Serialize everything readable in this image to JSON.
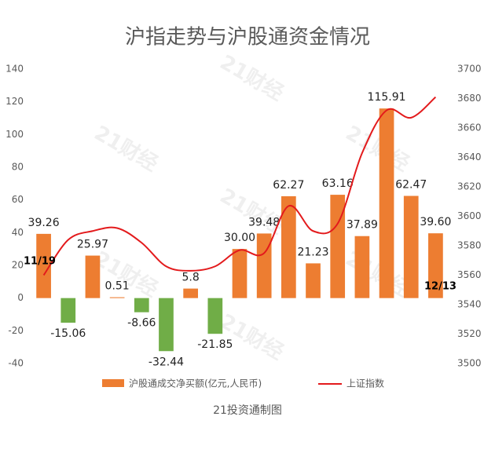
{
  "chart_data": {
    "type": "bar_line",
    "title": "沪指走势与沪股通资金情况",
    "footer": "21投资通制图",
    "watermark": "21财经",
    "annotations": [
      "11/19",
      "12/13"
    ],
    "series": [
      {
        "name": "沪股通成交净买额(亿元,人民币)",
        "type": "bar",
        "color": "#ed7d31",
        "negative_color": "#70ad47",
        "values": [
          39.26,
          -15.06,
          25.97,
          0.51,
          -8.66,
          -32.44,
          5.8,
          -21.85,
          30.0,
          39.48,
          62.27,
          21.23,
          63.16,
          37.89,
          115.91,
          62.47,
          39.6
        ],
        "value_labels": [
          "39.26",
          "-15.06",
          "25.97",
          "0.51",
          "-8.66",
          "-32.44",
          "5.8",
          "-21.85",
          "30.00",
          "39.48",
          "62.27",
          "21.23",
          "63.16",
          "37.89",
          "115.91",
          "62.47",
          "39.60"
        ]
      },
      {
        "name": "上证指数",
        "type": "line",
        "axis": "y2",
        "color": "#e31a1c",
        "values": [
          3560,
          3584,
          3590,
          3592,
          3582,
          3566,
          3563,
          3566,
          3577,
          3575,
          3607,
          3590,
          3595,
          3643,
          3672,
          3667,
          3681
        ]
      }
    ],
    "ylim": [
      -40,
      140
    ],
    "yticks": [
      -40,
      -20,
      0,
      20,
      40,
      60,
      80,
      100,
      120,
      140
    ],
    "y2lim": [
      3500,
      3700
    ],
    "y2ticks": [
      3500,
      3520,
      3540,
      3560,
      3580,
      3600,
      3620,
      3640,
      3660,
      3680,
      3700
    ],
    "grid": false,
    "legend": "bottom"
  }
}
